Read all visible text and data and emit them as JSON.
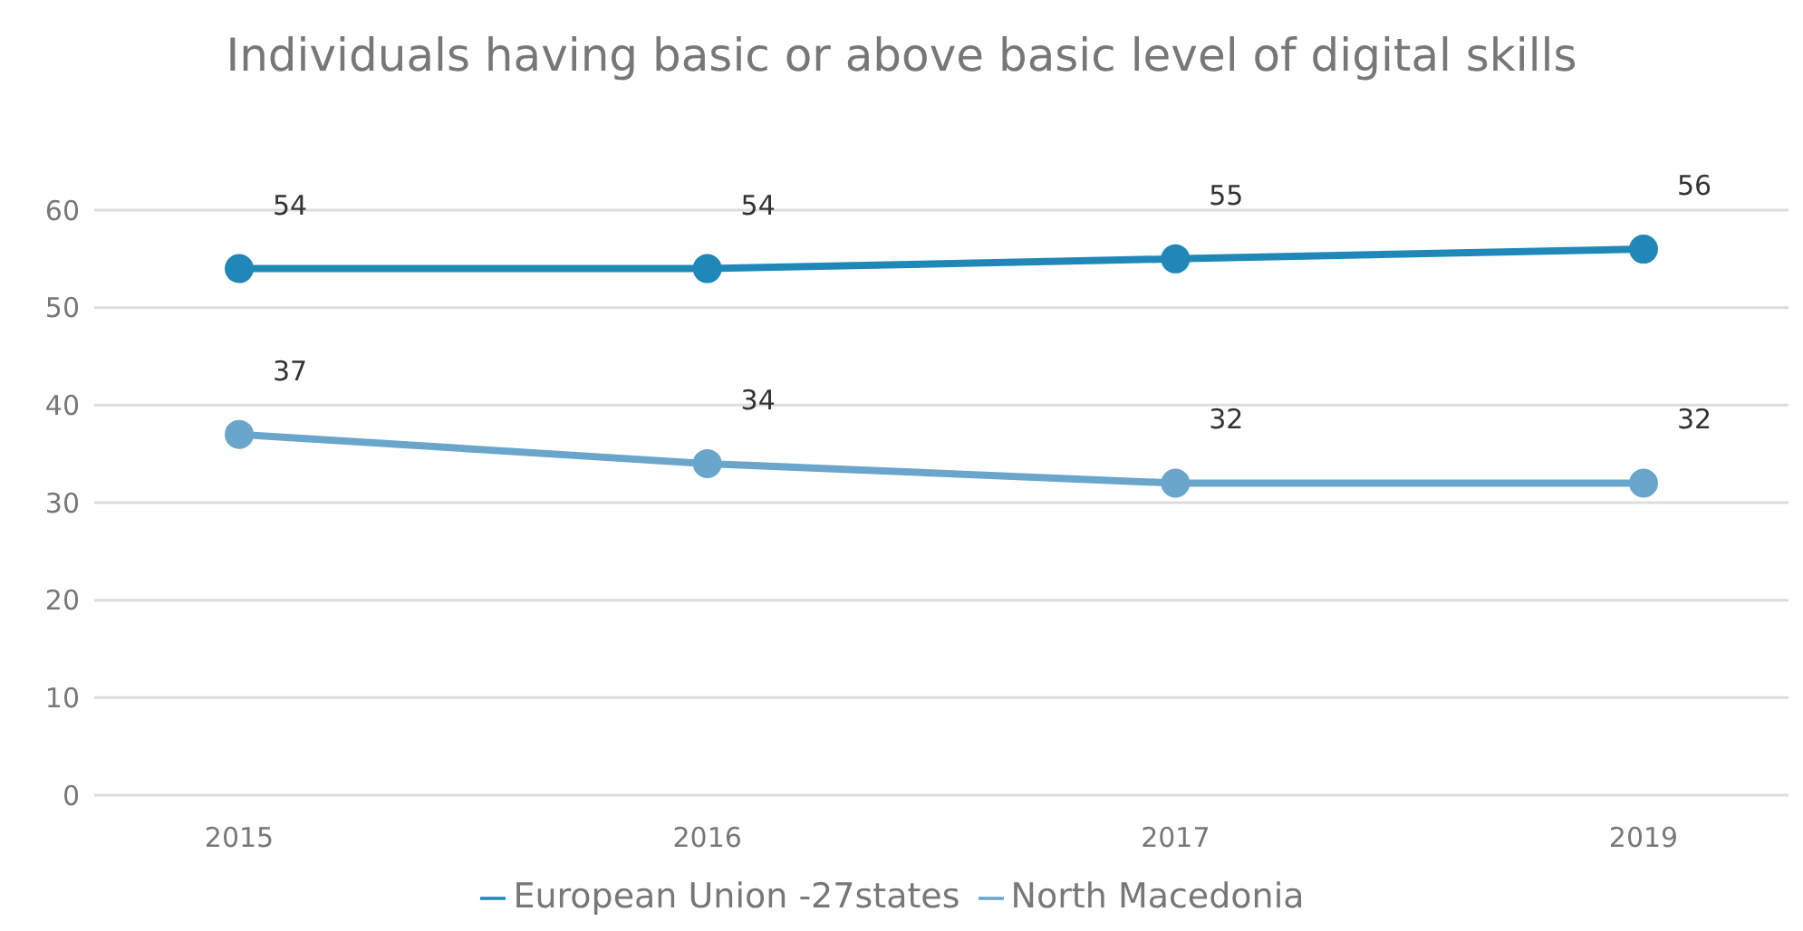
{
  "chart_data": {
    "type": "line",
    "title": "Individuals having basic or above basic level of digital skills",
    "categories": [
      "2015",
      "2016",
      "2017",
      "2019"
    ],
    "series": [
      {
        "name": "European Union -27states",
        "color": "#1f88b8",
        "values": [
          54,
          54,
          55,
          56
        ]
      },
      {
        "name": "North Macedonia",
        "color": "#6aa5cc",
        "values": [
          37,
          34,
          32,
          32
        ]
      }
    ],
    "ylim": [
      0,
      60
    ],
    "yticks": [
      0,
      10,
      20,
      30,
      40,
      50,
      60
    ],
    "grid": "y",
    "legend": "bottom",
    "marker": "circle",
    "line_style": "solid",
    "data_labels": true
  }
}
